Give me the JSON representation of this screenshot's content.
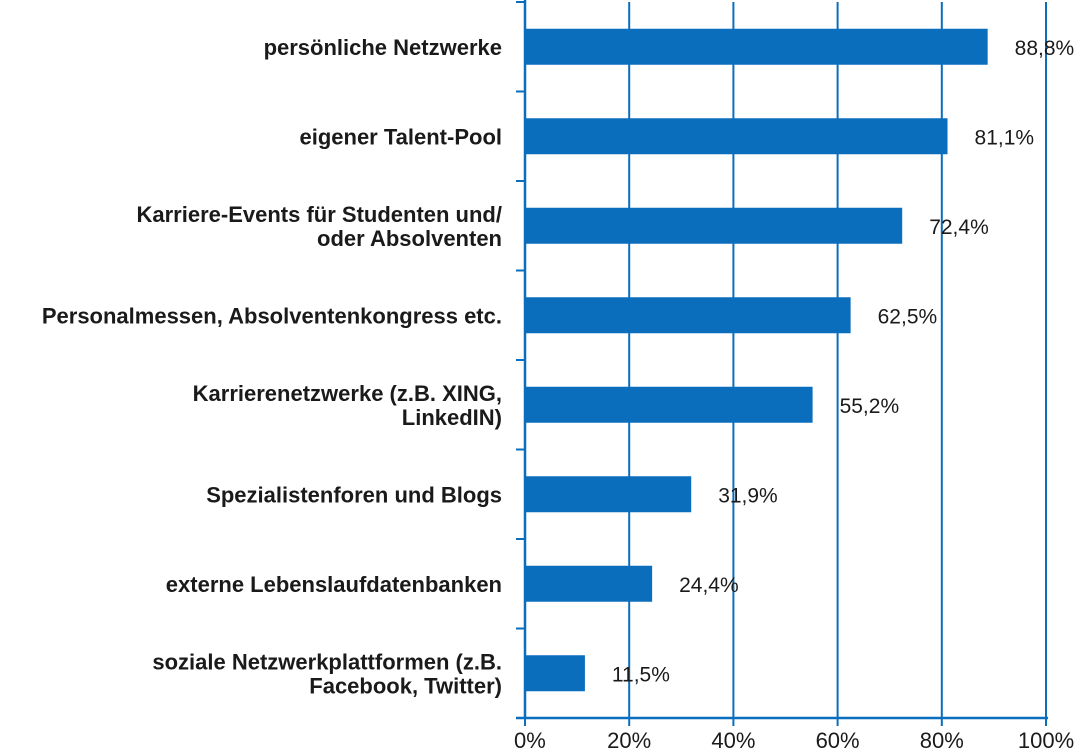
{
  "chart_data": {
    "type": "bar",
    "orientation": "horizontal",
    "categories": [
      [
        "persönliche Netzwerke"
      ],
      [
        "eigener Talent-Pool"
      ],
      [
        "Karriere-Events für Studenten und/",
        "oder Absolventen"
      ],
      [
        "Personalmessen, Absolventenkongress etc."
      ],
      [
        "Karrierenetzwerke (z.B. XING,",
        "LinkedIN)"
      ],
      [
        "Spezialistenforen und Blogs"
      ],
      [
        "externe Lebenslaufdatenbanken"
      ],
      [
        "soziale Netzwerkplattformen (z.B.",
        "Facebook, Twitter)"
      ]
    ],
    "values": [
      88.8,
      81.1,
      72.4,
      62.5,
      55.2,
      31.9,
      24.4,
      11.5
    ],
    "value_labels": [
      "88,8%",
      "81,1%",
      "72,4%",
      "62,5%",
      "55,2%",
      "31,9%",
      "24,4%",
      "11,5%"
    ],
    "xlim": [
      0,
      100
    ],
    "xticks": [
      0,
      20,
      40,
      60,
      80,
      100
    ],
    "xtick_labels": [
      "0%",
      "20%",
      "40%",
      "60%",
      "80%",
      "100%"
    ],
    "grid": true,
    "title": "",
    "xlabel": "",
    "ylabel": "",
    "colors": {
      "bar": "#0a6ebd",
      "axis": "#0a6ebd",
      "grid": "#0a6ebd"
    }
  }
}
